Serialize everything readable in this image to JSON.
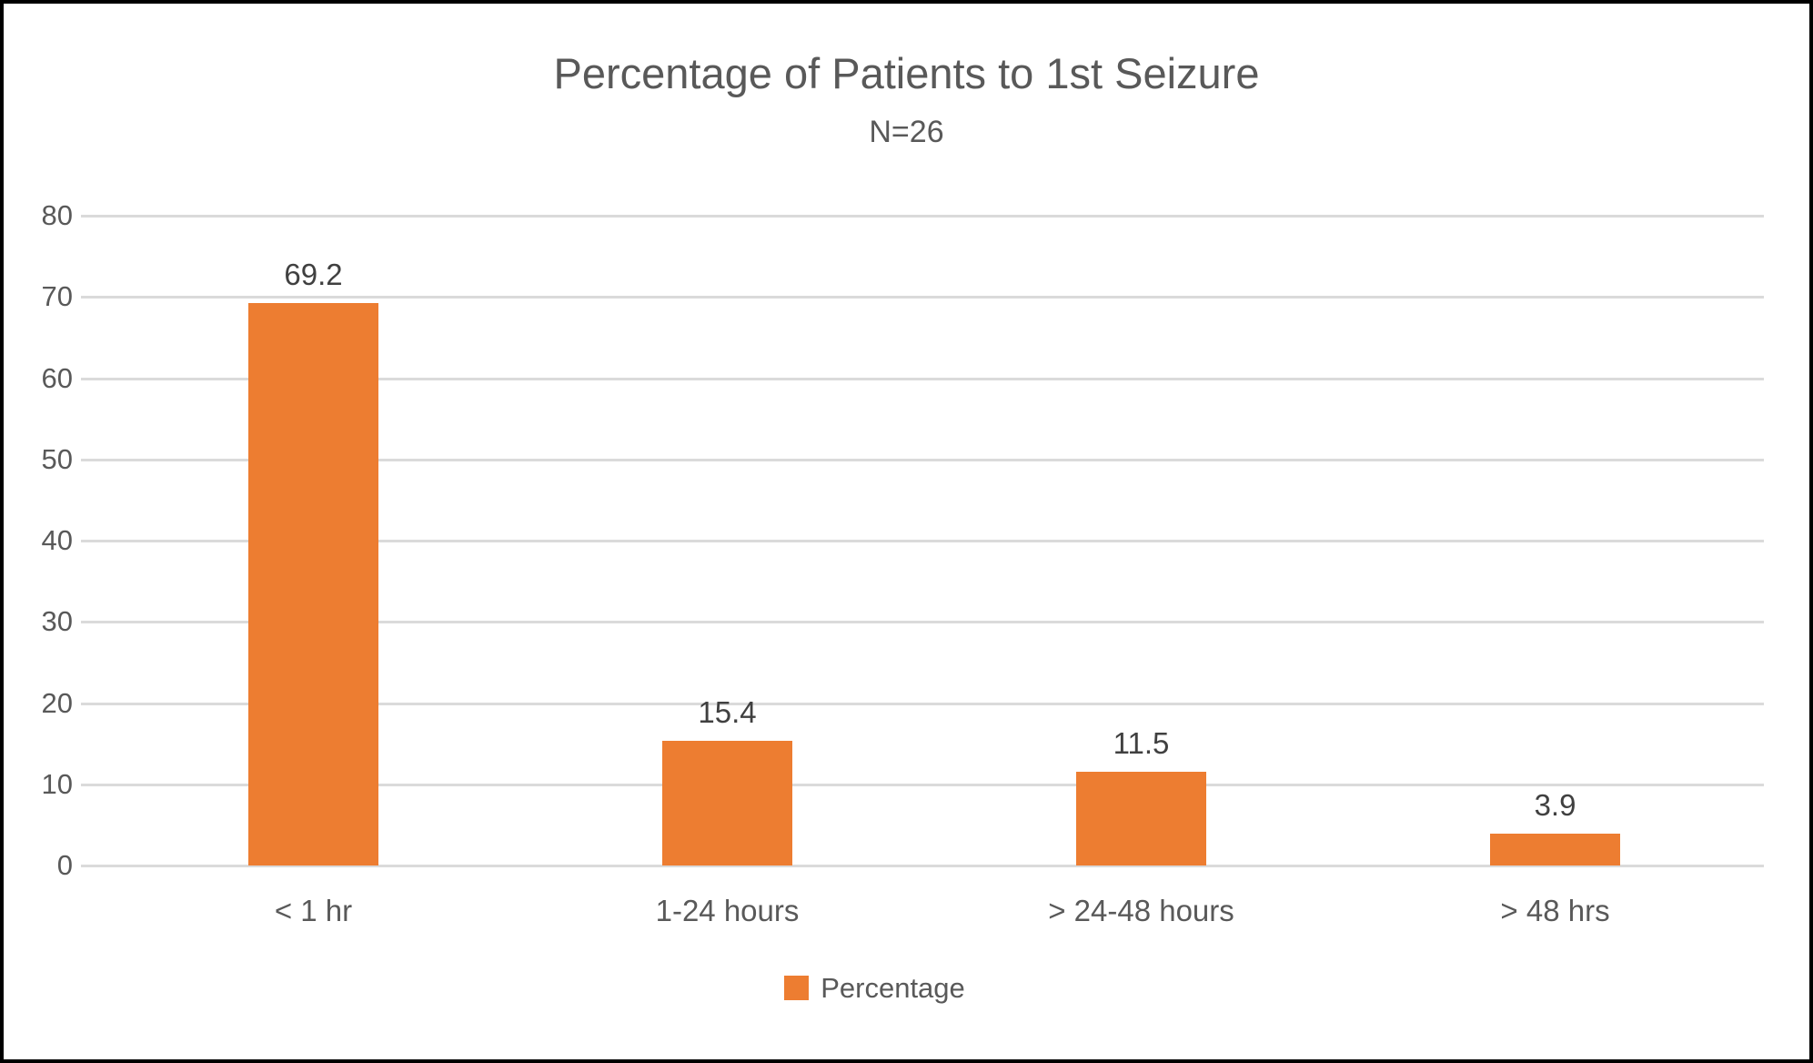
{
  "chart_data": {
    "type": "bar",
    "title": "Percentage of Patients to 1st Seizure",
    "subtitle": "N=26",
    "categories": [
      "< 1 hr",
      "1-24 hours",
      "> 24-48 hours",
      "> 48 hrs"
    ],
    "values": [
      69.2,
      15.4,
      11.5,
      3.9
    ],
    "data_labels": [
      "69.2",
      "15.4",
      "11.5",
      "3.9"
    ],
    "series_name": "Percentage",
    "xlabel": "",
    "ylabel": "",
    "ylim": [
      0,
      80
    ],
    "yticks": [
      0,
      10,
      20,
      30,
      40,
      50,
      60,
      70,
      80
    ],
    "grid": "horizontal",
    "legend_position": "bottom",
    "colors": {
      "bar": "#ED7D31",
      "axis_text": "#595959",
      "value_labels": "#404040",
      "gridlines": "#DADADA",
      "frame_border": "#000000",
      "background": "#FFFFFF"
    }
  },
  "legend": {
    "label": "Percentage"
  }
}
